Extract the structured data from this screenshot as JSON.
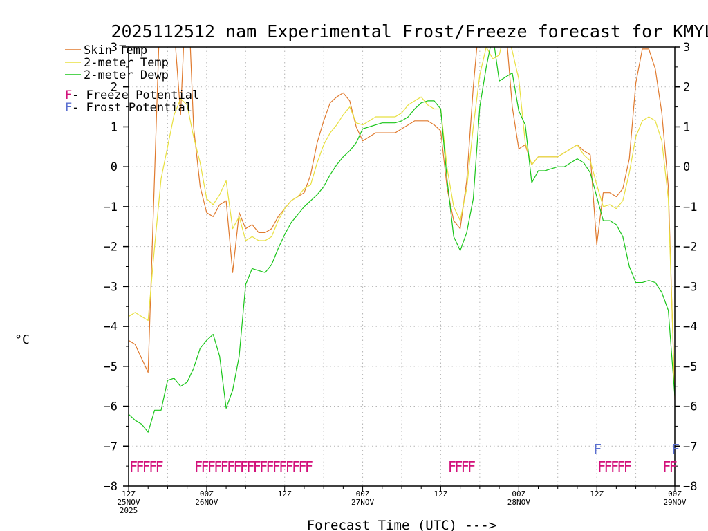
{
  "chart_data": {
    "type": "line",
    "title": "2025112512 nam Experimental Frost/Freeze forecast for KMYL",
    "ylabel": "°C",
    "xlabel": "Forecast Time (UTC) --->",
    "ylim": [
      -8,
      3
    ],
    "xlim": [
      0,
      84
    ],
    "yticks": [
      -8,
      -7,
      -6,
      -5,
      -4,
      -3,
      -2,
      -1,
      0,
      1,
      2,
      3
    ],
    "ytick_labels": [
      "−8",
      "−7",
      "−6",
      "−5",
      "−4",
      "−3",
      "−2",
      "−1",
      "0",
      "1",
      "2",
      "3"
    ],
    "xticks": [
      {
        "hour": 0,
        "lines": [
          "12Z",
          "25NOV",
          "2025"
        ]
      },
      {
        "hour": 12,
        "lines": [
          "00Z",
          "26NOV"
        ]
      },
      {
        "hour": 24,
        "lines": [
          "12Z"
        ]
      },
      {
        "hour": 36,
        "lines": [
          "00Z",
          "27NOV"
        ]
      },
      {
        "hour": 48,
        "lines": [
          "12Z"
        ]
      },
      {
        "hour": 60,
        "lines": [
          "00Z",
          "28NOV"
        ]
      },
      {
        "hour": 72,
        "lines": [
          "12Z"
        ]
      },
      {
        "hour": 84,
        "lines": [
          "00Z",
          "29NOV"
        ]
      }
    ],
    "grid": true,
    "series": [
      {
        "name": "Skin Temp",
        "color": "#e07a2e",
        "x": [
          0,
          1,
          2,
          3,
          4,
          5,
          6,
          7,
          8,
          9,
          10,
          11,
          12,
          13,
          14,
          15,
          16,
          17,
          18,
          19,
          20,
          21,
          22,
          23,
          24,
          25,
          26,
          27,
          28,
          29,
          30,
          31,
          32,
          33,
          34,
          35,
          36,
          37,
          38,
          39,
          40,
          41,
          42,
          43,
          44,
          45,
          46,
          47,
          48,
          49,
          50,
          51,
          52,
          53,
          54,
          55,
          56,
          57,
          58,
          59,
          60,
          61,
          62,
          63,
          64,
          65,
          66,
          67,
          68,
          69,
          70,
          71,
          72,
          73,
          74,
          75,
          76,
          77,
          78,
          79,
          80,
          81,
          82,
          83,
          84
        ],
        "values": [
          -4.35,
          -4.45,
          -4.8,
          -5.15,
          -0.2,
          4.8,
          5.8,
          3.5,
          1.3,
          5.0,
          1.0,
          -0.5,
          -1.15,
          -1.25,
          -0.95,
          -0.85,
          -2.65,
          -1.15,
          -1.55,
          -1.45,
          -1.65,
          -1.65,
          -1.55,
          -1.25,
          -1.05,
          -0.85,
          -0.75,
          -0.65,
          -0.2,
          0.6,
          1.15,
          1.6,
          1.75,
          1.85,
          1.65,
          1.0,
          0.65,
          0.75,
          0.85,
          0.85,
          0.85,
          0.85,
          0.95,
          1.05,
          1.15,
          1.15,
          1.15,
          1.05,
          0.9,
          -0.55,
          -1.35,
          -1.55,
          -0.35,
          2.0,
          3.8,
          3.5,
          3.3,
          4.0,
          3.5,
          1.5,
          0.45,
          0.55,
          0.05,
          0.25,
          0.25,
          0.25,
          0.25,
          0.35,
          0.45,
          0.55,
          0.4,
          0.3,
          -1.95,
          -0.65,
          -0.65,
          -0.75,
          -0.55,
          0.2,
          2.1,
          2.95,
          2.95,
          2.45,
          1.35,
          -0.5,
          -5.85
        ]
      },
      {
        "name": "2-meter Temp",
        "color": "#e8e040",
        "x": [
          0,
          1,
          2,
          3,
          4,
          5,
          6,
          7,
          8,
          9,
          10,
          11,
          12,
          13,
          14,
          15,
          16,
          17,
          18,
          19,
          20,
          21,
          22,
          23,
          24,
          25,
          26,
          27,
          28,
          29,
          30,
          31,
          32,
          33,
          34,
          35,
          36,
          37,
          38,
          39,
          40,
          41,
          42,
          43,
          44,
          45,
          46,
          47,
          48,
          49,
          50,
          51,
          52,
          53,
          54,
          55,
          56,
          57,
          58,
          59,
          60,
          61,
          62,
          63,
          64,
          65,
          66,
          67,
          68,
          69,
          70,
          71,
          72,
          73,
          74,
          75,
          76,
          77,
          78,
          79,
          80,
          81,
          82,
          83,
          84
        ],
        "values": [
          -3.75,
          -3.65,
          -3.75,
          -3.85,
          -2.0,
          -0.3,
          0.5,
          1.3,
          1.7,
          1.55,
          0.75,
          0.1,
          -0.8,
          -0.95,
          -0.7,
          -0.35,
          -1.55,
          -1.25,
          -1.85,
          -1.75,
          -1.85,
          -1.85,
          -1.75,
          -1.35,
          -1.05,
          -0.85,
          -0.75,
          -0.55,
          -0.45,
          0.1,
          0.55,
          0.85,
          1.05,
          1.3,
          1.5,
          1.1,
          1.05,
          1.15,
          1.25,
          1.25,
          1.25,
          1.25,
          1.35,
          1.55,
          1.65,
          1.75,
          1.55,
          1.45,
          1.45,
          -0.05,
          -1.0,
          -1.35,
          -0.55,
          1.0,
          2.3,
          3.0,
          2.7,
          2.8,
          3.5,
          2.9,
          2.2,
          0.6,
          0.05,
          0.25,
          0.25,
          0.25,
          0.25,
          0.35,
          0.45,
          0.55,
          0.3,
          0.15,
          -0.45,
          -1.0,
          -0.95,
          -1.05,
          -0.85,
          -0.15,
          0.75,
          1.15,
          1.25,
          1.15,
          0.65,
          -0.8,
          -5.7
        ]
      },
      {
        "name": "2-meter Dewp",
        "color": "#19c519",
        "x": [
          0,
          1,
          2,
          3,
          4,
          5,
          6,
          7,
          8,
          9,
          10,
          11,
          12,
          13,
          14,
          15,
          16,
          17,
          18,
          19,
          20,
          21,
          22,
          23,
          24,
          25,
          26,
          27,
          28,
          29,
          30,
          31,
          32,
          33,
          34,
          35,
          36,
          37,
          38,
          39,
          40,
          41,
          42,
          43,
          44,
          45,
          46,
          47,
          48,
          49,
          50,
          51,
          52,
          53,
          54,
          55,
          56,
          57,
          58,
          59,
          60,
          61,
          62,
          63,
          64,
          65,
          66,
          67,
          68,
          69,
          70,
          71,
          72,
          73,
          74,
          75,
          76,
          77,
          78,
          79,
          80,
          81,
          82,
          83,
          84
        ],
        "values": [
          -6.2,
          -6.35,
          -6.45,
          -6.65,
          -6.1,
          -6.1,
          -5.35,
          -5.3,
          -5.5,
          -5.4,
          -5.05,
          -4.55,
          -4.35,
          -4.2,
          -4.75,
          -6.05,
          -5.6,
          -4.75,
          -2.95,
          -2.55,
          -2.6,
          -2.65,
          -2.45,
          -2.05,
          -1.7,
          -1.4,
          -1.2,
          -1.0,
          -0.85,
          -0.7,
          -0.5,
          -0.2,
          0.05,
          0.25,
          0.4,
          0.6,
          0.95,
          1.0,
          1.05,
          1.1,
          1.1,
          1.1,
          1.15,
          1.25,
          1.45,
          1.6,
          1.65,
          1.65,
          1.45,
          -0.35,
          -1.75,
          -2.1,
          -1.65,
          -0.8,
          1.5,
          2.5,
          3.3,
          2.15,
          2.25,
          2.35,
          1.4,
          1.05,
          -0.4,
          -0.1,
          -0.1,
          -0.05,
          0.0,
          0.0,
          0.1,
          0.2,
          0.1,
          -0.15,
          -0.75,
          -1.35,
          -1.35,
          -1.45,
          -1.75,
          -2.5,
          -2.9,
          -2.9,
          -2.85,
          -2.9,
          -3.15,
          -3.6,
          -5.75
        ]
      }
    ],
    "legend": {
      "placement": "top-left",
      "entries": [
        {
          "label": "Skin Temp",
          "color": "#e07a2e"
        },
        {
          "label": "2-meter Temp",
          "color": "#e8e040"
        },
        {
          "label": "2-meter Dewp",
          "color": "#19c519"
        }
      ],
      "potential_entries": [
        {
          "glyph": "F",
          "text": " - Freeze Potential",
          "color": "#d2107a"
        },
        {
          "glyph": "F",
          "text": " - Frost Potential",
          "color": "#5a6fd0"
        }
      ]
    },
    "freeze_potential": {
      "glyph": "F",
      "color": "#d2107a",
      "hours": [
        0,
        1,
        2,
        3,
        4,
        10,
        11,
        12,
        13,
        14,
        15,
        16,
        17,
        18,
        19,
        20,
        21,
        22,
        23,
        24,
        25,
        26,
        27,
        49,
        50,
        51,
        52,
        72,
        73,
        74,
        75,
        76,
        82,
        83
      ]
    },
    "frost_potential": {
      "glyph": "F",
      "color": "#5a6fd0",
      "hours": [
        72,
        84
      ]
    }
  }
}
